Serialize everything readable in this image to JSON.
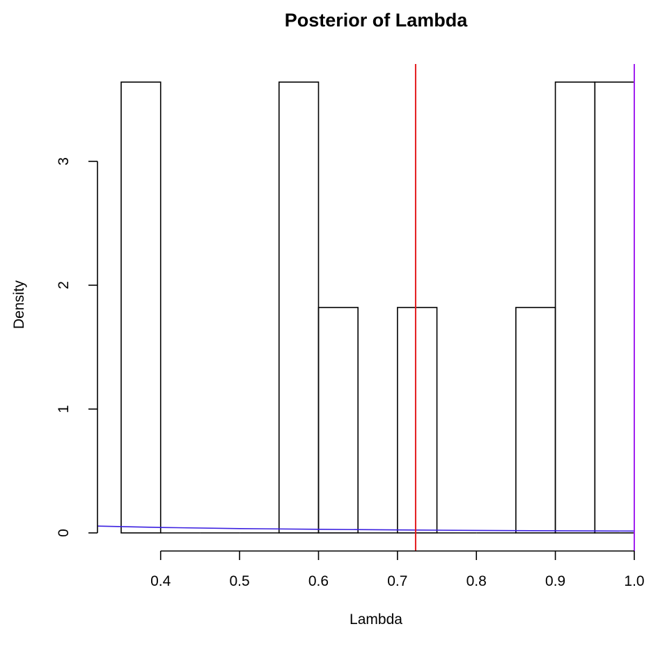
{
  "chart_data": {
    "type": "bar",
    "title": "Posterior of Lambda",
    "xlabel": "Lambda",
    "ylabel": "Density",
    "xlim": [
      0.32,
      1.0
    ],
    "ylim": [
      0,
      3.64
    ],
    "x_ticks": [
      "0.4",
      "0.5",
      "0.6",
      "0.7",
      "0.8",
      "0.9",
      "1.0"
    ],
    "x_tick_values": [
      0.4,
      0.5,
      0.6,
      0.7,
      0.8,
      0.9,
      1.0
    ],
    "y_ticks": [
      "0",
      "1",
      "2",
      "3"
    ],
    "y_tick_values": [
      0,
      1,
      2,
      3
    ],
    "bins": [
      {
        "from": 0.35,
        "to": 0.4,
        "density": 3.64
      },
      {
        "from": 0.4,
        "to": 0.45,
        "density": 0
      },
      {
        "from": 0.45,
        "to": 0.5,
        "density": 0
      },
      {
        "from": 0.5,
        "to": 0.55,
        "density": 0
      },
      {
        "from": 0.55,
        "to": 0.6,
        "density": 3.64
      },
      {
        "from": 0.6,
        "to": 0.65,
        "density": 1.82
      },
      {
        "from": 0.65,
        "to": 0.7,
        "density": 0
      },
      {
        "from": 0.7,
        "to": 0.75,
        "density": 1.82
      },
      {
        "from": 0.75,
        "to": 0.8,
        "density": 0
      },
      {
        "from": 0.8,
        "to": 0.85,
        "density": 0
      },
      {
        "from": 0.85,
        "to": 0.9,
        "density": 1.82
      },
      {
        "from": 0.9,
        "to": 0.95,
        "density": 3.64
      },
      {
        "from": 0.95,
        "to": 1.0,
        "density": 3.64
      }
    ],
    "reference_lines": [
      {
        "x": 0.723,
        "color": "#e31a1c"
      },
      {
        "x": 1.0,
        "color": "#a020f0"
      }
    ],
    "density_curve": {
      "color": "#3a1fe0",
      "x": [
        0.32,
        0.4,
        0.5,
        0.6,
        0.7,
        0.8,
        0.9,
        1.0
      ],
      "y": [
        0.055,
        0.044,
        0.035,
        0.029,
        0.024,
        0.02,
        0.017,
        0.015
      ]
    },
    "colors": {
      "bars": "#000000",
      "axis": "#000000"
    }
  }
}
